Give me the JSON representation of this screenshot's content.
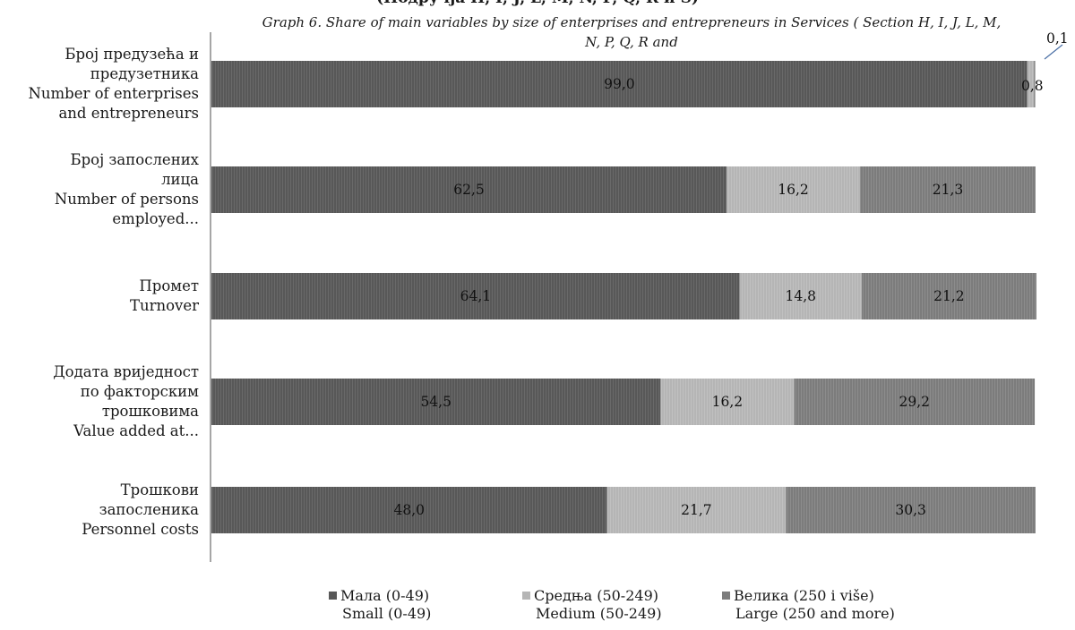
{
  "title_cut": "(Подручја H, I, J, L, M, N, P, Q, R и S)",
  "subtitle_line1": "Graph 6. Share of main variables by size of enterprises and entrepreneurs in Services ( Section H, I, J, L, M,",
  "subtitle_line2": "N, P, Q, R and",
  "colors": {
    "small": "#585858",
    "medium": "#b5b5b5",
    "large": "#7c7c7c",
    "axis": "#888888",
    "leader": "#4a6fa5"
  },
  "categories": [
    {
      "lines": [
        "Број предузећа и",
        "предузетника",
        "Number of enterprises",
        "and entrepreneurs"
      ]
    },
    {
      "lines": [
        "Број запослених",
        "лица",
        "Number of persons",
        "employed..."
      ]
    },
    {
      "lines": [
        "Промет",
        "Turnover"
      ]
    },
    {
      "lines": [
        "Додата вриједност",
        "по факторским",
        "трошковима",
        "Value added at..."
      ]
    },
    {
      "lines": [
        "Трошкови",
        "запосленика",
        "Personnel costs"
      ]
    }
  ],
  "legend": [
    {
      "line1": "Мала (0-49)",
      "line2": "Small (0-49)"
    },
    {
      "line1": "Средња  (50-249)",
      "line2": "Medium (50-249)"
    },
    {
      "line1": "Велика (250 i više)",
      "line2": "Large (250 and more)"
    }
  ],
  "chart_data": {
    "type": "bar",
    "orientation": "horizontal",
    "stacked": true,
    "categories": [
      "Број предузећа и предузетника / Number of enterprises and entrepreneurs",
      "Број запослених лица / Number of persons employed...",
      "Промет / Turnover",
      "Додата вриједност по факторским трошковима / Value added at...",
      "Трошкови запосленика / Personnel costs"
    ],
    "series": [
      {
        "name": "Мала (0-49) / Small (0-49)",
        "values": [
          99.0,
          62.5,
          64.1,
          54.5,
          48.0
        ],
        "labels": [
          "99,0",
          "62,5",
          "64,1",
          "54,5",
          "48,0"
        ]
      },
      {
        "name": "Средња (50-249) / Medium (50-249)",
        "values": [
          0.8,
          16.2,
          14.8,
          16.2,
          21.7
        ],
        "labels": [
          "0,8",
          "16,2",
          "14,8",
          "16,2",
          "21,7"
        ]
      },
      {
        "name": "Велика (250 i više) / Large (250 and more)",
        "values": [
          0.1,
          21.3,
          21.2,
          29.2,
          30.3
        ],
        "labels": [
          "0,1",
          "21,3",
          "21,2",
          "29,2",
          "30,3"
        ]
      }
    ],
    "xlim": [
      0,
      100
    ],
    "legend_position": "bottom",
    "grid": false
  }
}
